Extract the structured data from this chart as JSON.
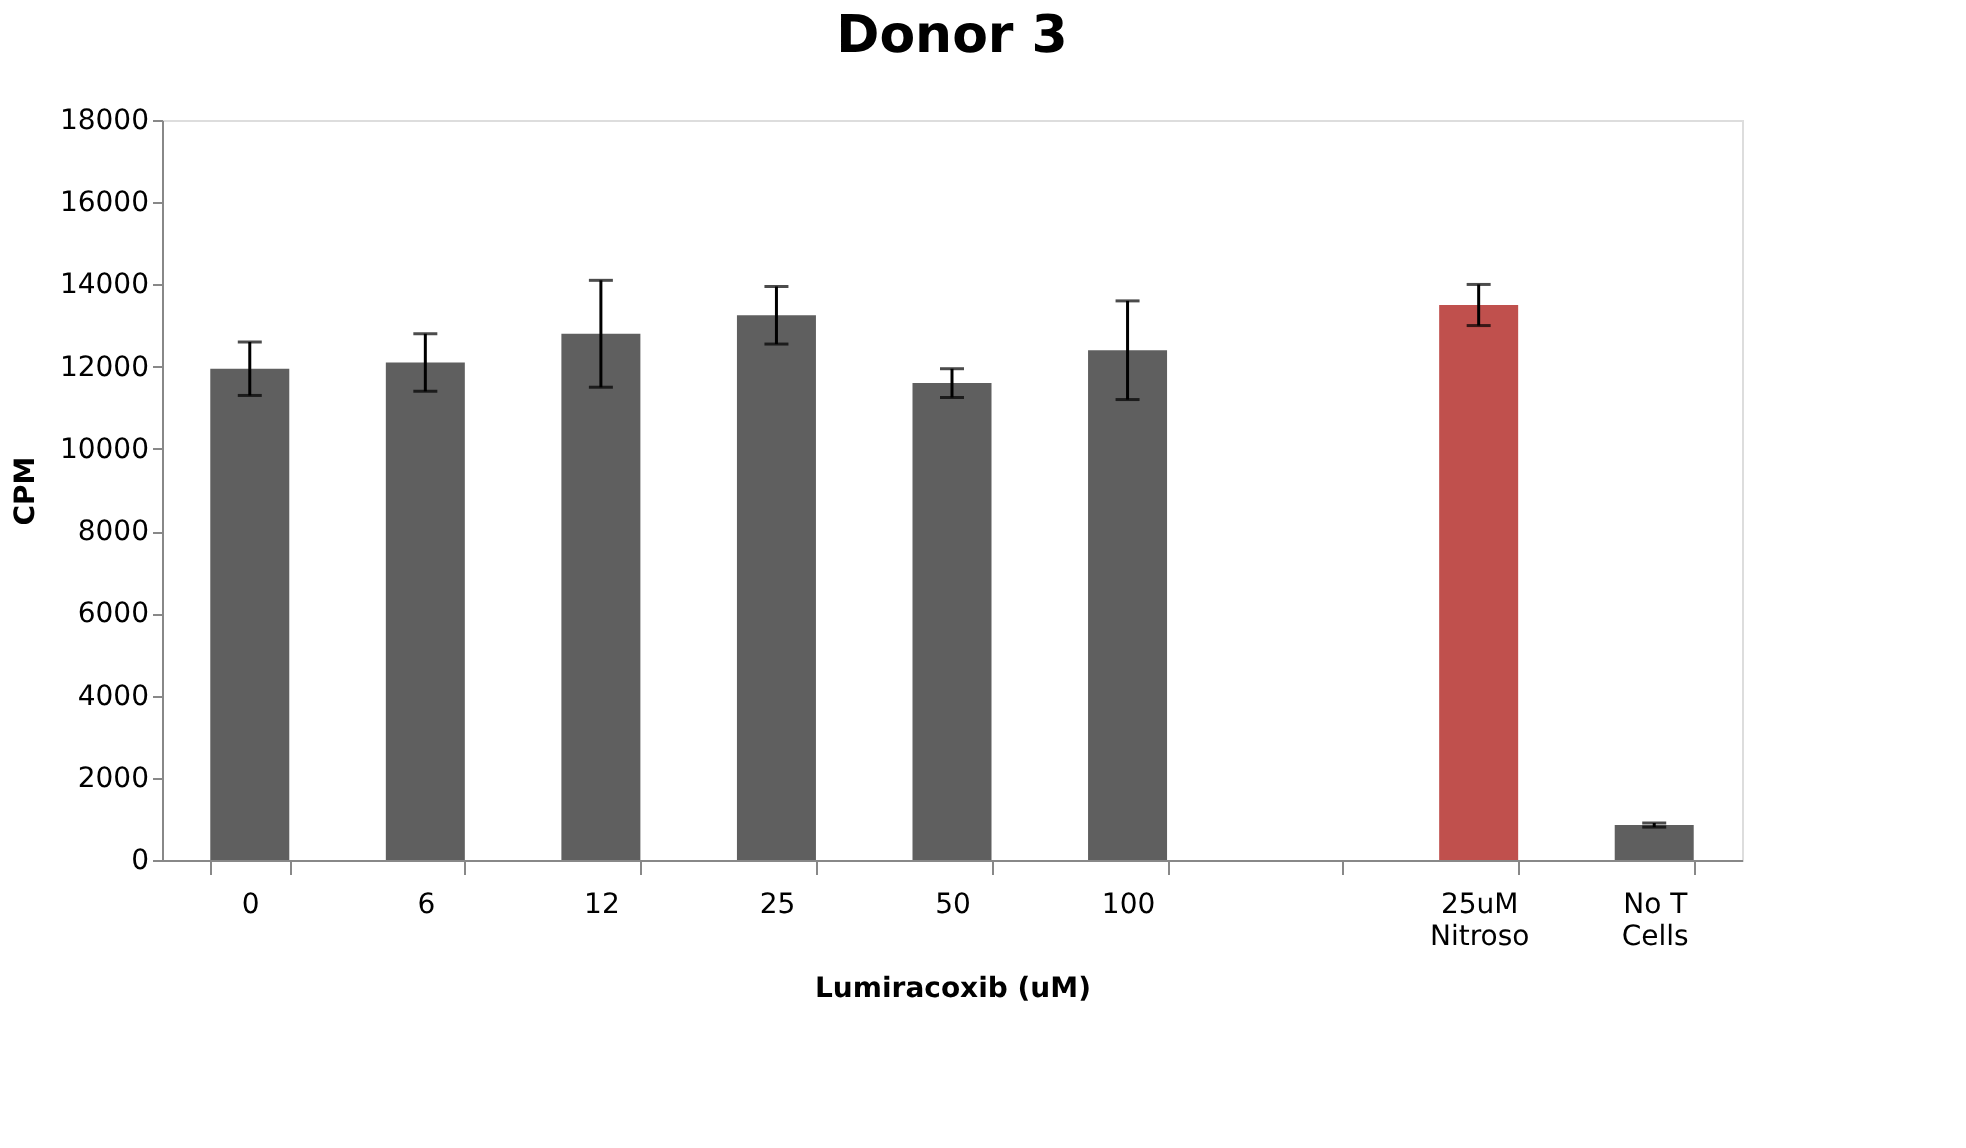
{
  "chart_data": {
    "type": "bar",
    "title": "Donor 3",
    "xlabel": "Lumiracoxib (uM)",
    "ylabel": "CPM",
    "categories": [
      "0",
      "6",
      "12",
      "25",
      "50",
      "100",
      null,
      "25uM\nNitroso",
      "No T\nCells"
    ],
    "values": [
      11950,
      12100,
      12800,
      13250,
      11600,
      12400,
      null,
      13500,
      850
    ],
    "errors": [
      650,
      700,
      1300,
      700,
      350,
      1200,
      null,
      500,
      50
    ],
    "colors": [
      "#5f5f5f",
      "#5f5f5f",
      "#5f5f5f",
      "#5f5f5f",
      "#5f5f5f",
      "#5f5f5f",
      "#5f5f5f",
      "#c0504d",
      "#5f5f5f"
    ],
    "ylim": [
      0,
      18000
    ],
    "yticks": [
      0,
      2000,
      4000,
      6000,
      8000,
      10000,
      12000,
      14000,
      16000,
      18000
    ],
    "grid": false
  }
}
